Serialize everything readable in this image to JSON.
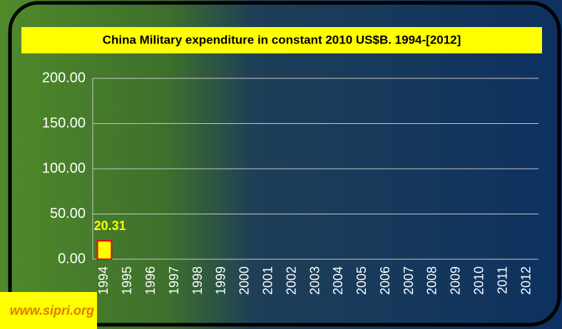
{
  "chart_data": {
    "type": "bar",
    "title": "China Military expenditure in constant 2010 US$B. 1994-[2012]",
    "source": "www.sipri.org",
    "categories": [
      "1994",
      "1995",
      "1996",
      "1997",
      "1998",
      "1999",
      "2000",
      "2001",
      "2002",
      "2003",
      "2004",
      "2005",
      "2006",
      "2007",
      "2008",
      "2009",
      "2010",
      "2011",
      "2012"
    ],
    "values": [
      20.31,
      null,
      null,
      null,
      null,
      null,
      null,
      null,
      null,
      null,
      null,
      null,
      null,
      null,
      null,
      null,
      null,
      null,
      null
    ],
    "color": "#ffff00",
    "edge_color": "#ff0000",
    "ylim": [
      0,
      200
    ],
    "yticks": [
      {
        "value": 0,
        "label": "0.00"
      },
      {
        "value": 50,
        "label": "50.00"
      },
      {
        "value": 100,
        "label": "100.00"
      },
      {
        "value": 150,
        "label": "150.00"
      },
      {
        "value": 200,
        "label": "200.00"
      }
    ],
    "grid": true
  }
}
